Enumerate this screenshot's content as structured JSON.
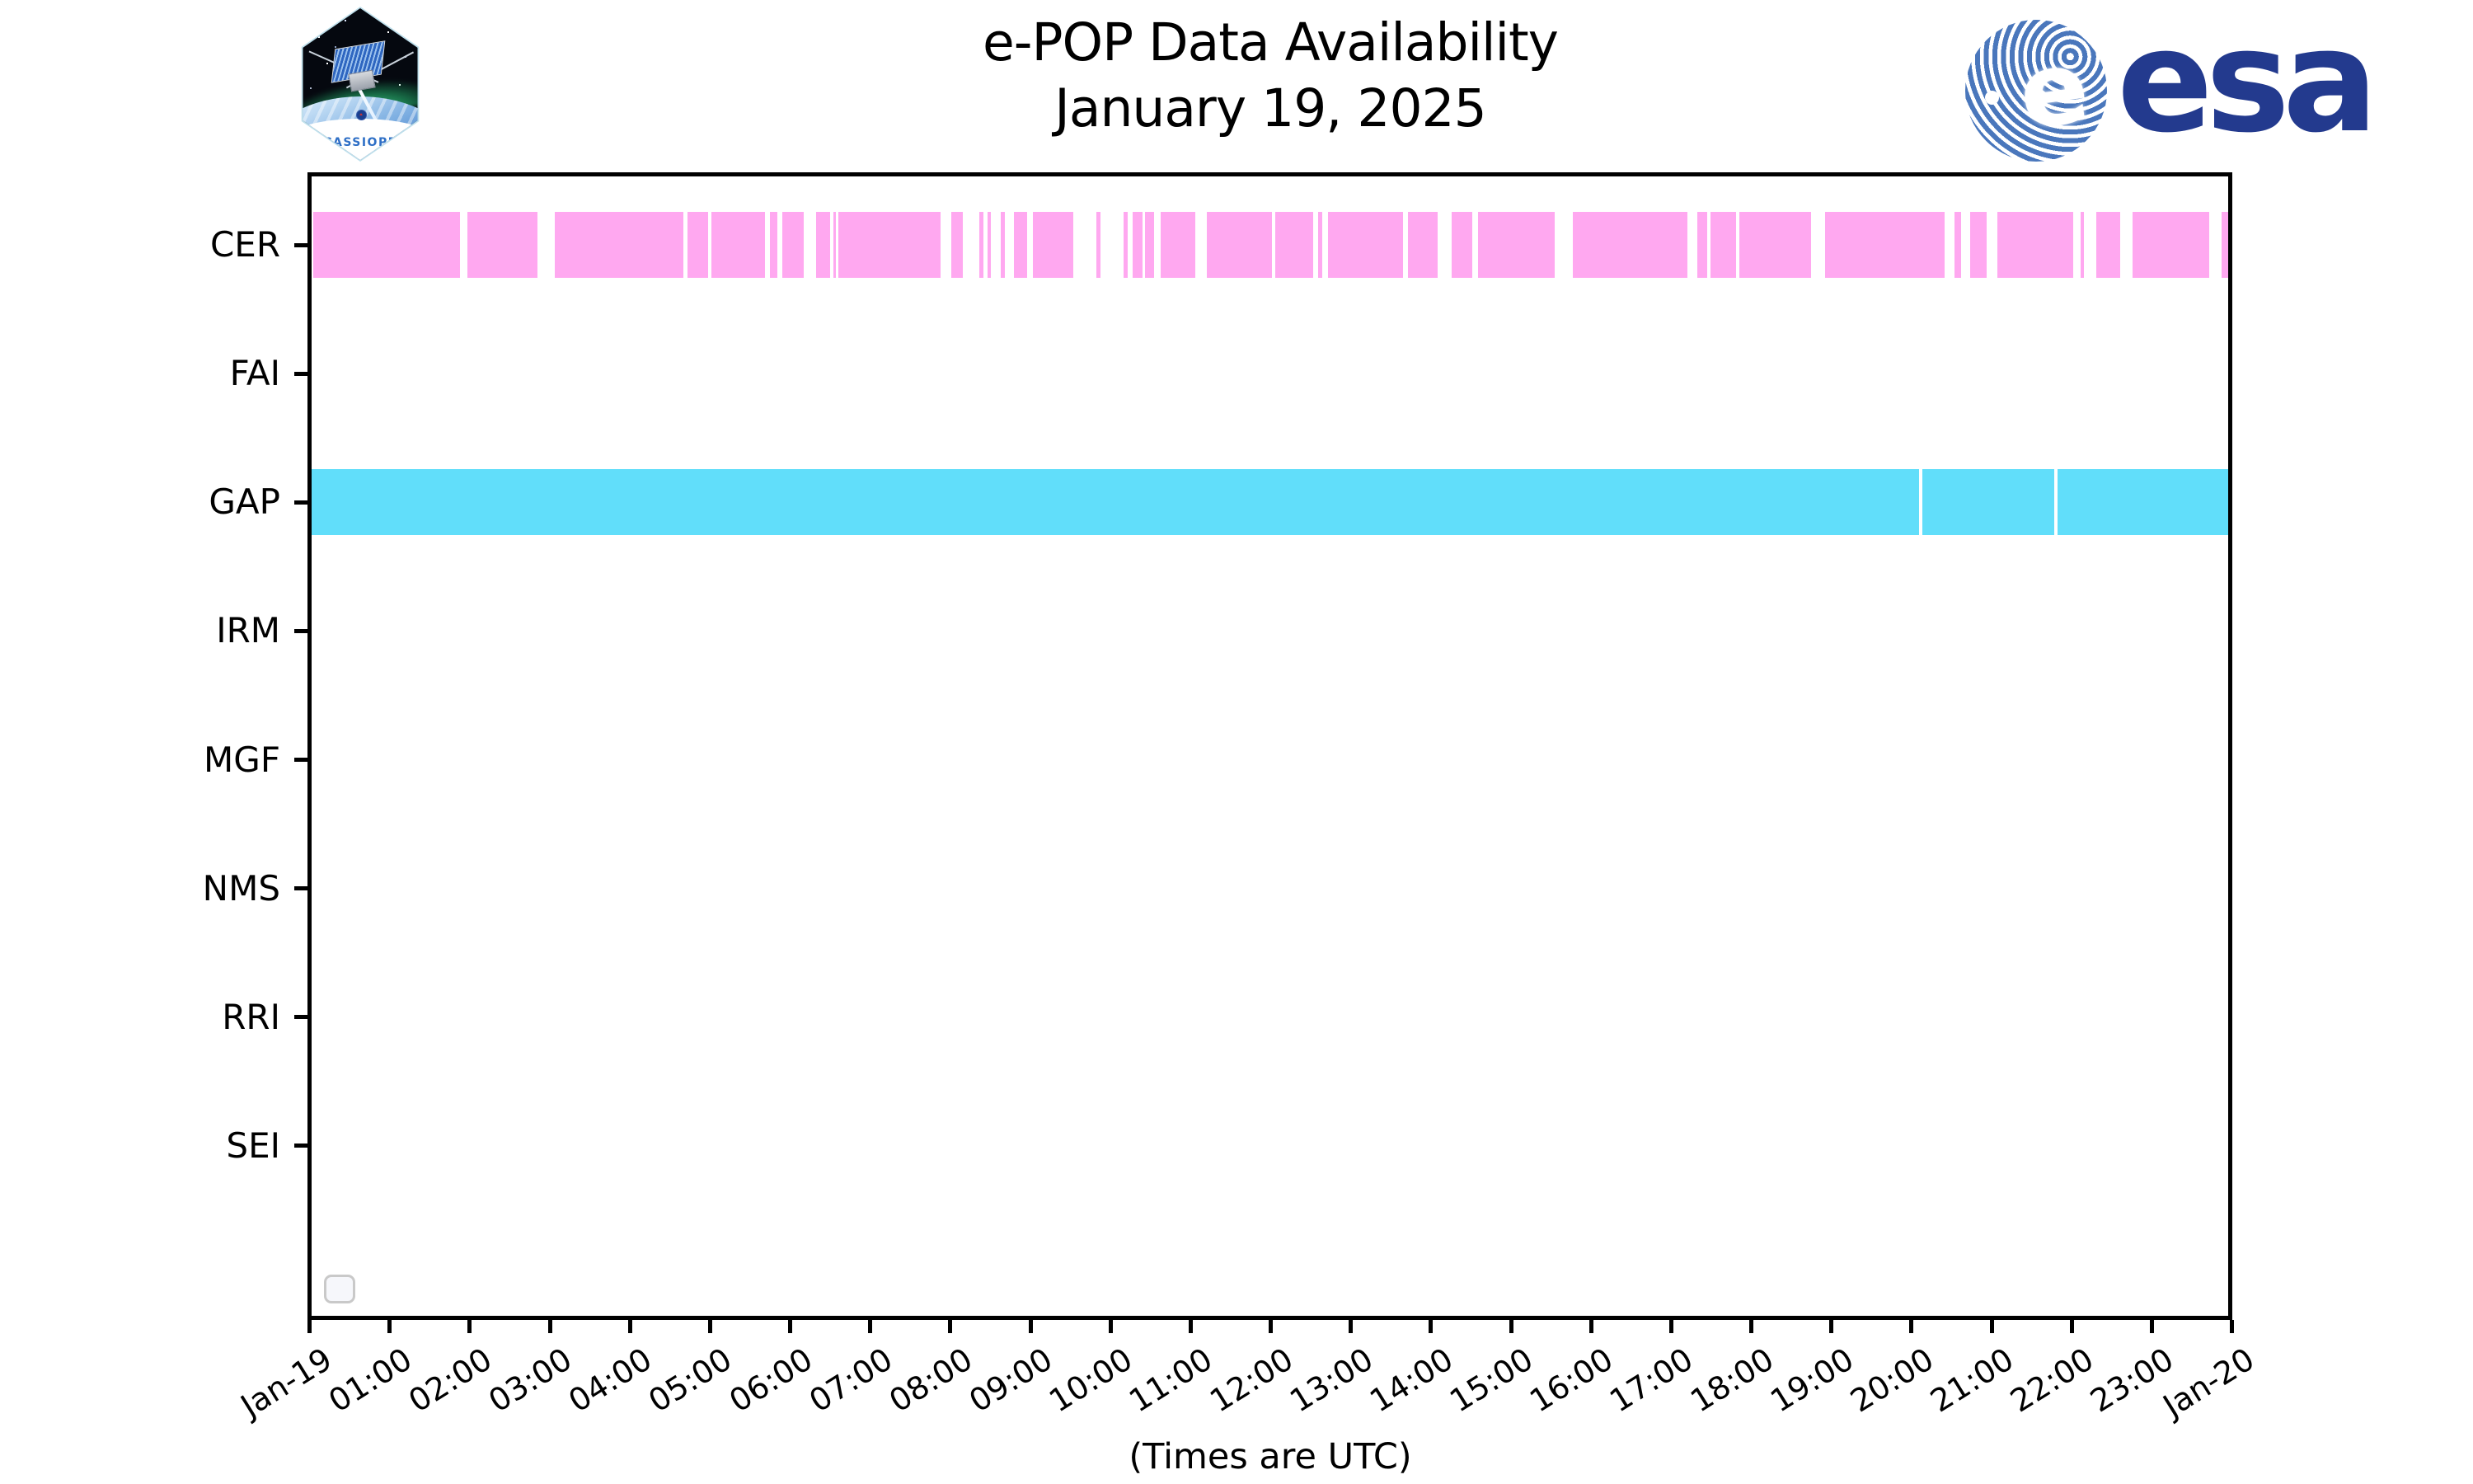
{
  "header": {
    "title": "e-POP Data Availability",
    "subtitle": "January 19, 2025",
    "cassiope_label": "CASSIOPE",
    "esa_wordmark": "esa",
    "esa_globe_letter": "e"
  },
  "footer": {
    "note": "(Times are UTC)"
  },
  "colors": {
    "cer_bar": "#FFA8F0",
    "gap_bar": "#61DEFA",
    "axis": "#000000",
    "background": "#FFFFFF",
    "esa_navy": "#233A8E",
    "esa_globe_blue": "#4A77BC",
    "patch_text_blue": "#2E6FC6",
    "legend_border": "#C9C9C9"
  },
  "chart_data": {
    "type": "bar",
    "variant": "horizontal-availability-timeline",
    "title": "e-POP Data Availability",
    "subtitle": "January 19, 2025",
    "xlabel": "(Times are UTC)",
    "ylabel": "",
    "grid": false,
    "legend": {
      "visible": true,
      "entries": []
    },
    "x_units": "hours UTC",
    "x_range_hours": [
      0,
      24
    ],
    "x_ticks": [
      "Jan-19",
      "01:00",
      "02:00",
      "03:00",
      "04:00",
      "05:00",
      "06:00",
      "07:00",
      "08:00",
      "09:00",
      "10:00",
      "11:00",
      "12:00",
      "13:00",
      "14:00",
      "15:00",
      "16:00",
      "17:00",
      "18:00",
      "19:00",
      "20:00",
      "21:00",
      "22:00",
      "23:00",
      "Jan-20"
    ],
    "rows": [
      {
        "label": "CER",
        "color": "#FFA8F0",
        "segments_hours": [
          [
            0.02,
            1.86
          ],
          [
            1.95,
            2.83
          ],
          [
            3.05,
            4.66
          ],
          [
            4.71,
            4.96
          ],
          [
            5.01,
            5.68
          ],
          [
            5.74,
            5.83
          ],
          [
            5.89,
            6.16
          ],
          [
            6.32,
            6.49
          ],
          [
            6.53,
            6.57
          ],
          [
            6.6,
            7.88
          ],
          [
            8.01,
            8.15
          ],
          [
            8.36,
            8.41
          ],
          [
            8.46,
            8.51
          ],
          [
            8.63,
            8.68
          ],
          [
            8.79,
            8.96
          ],
          [
            9.03,
            9.54
          ],
          [
            9.83,
            9.88
          ],
          [
            10.17,
            10.22
          ],
          [
            10.28,
            10.4
          ],
          [
            10.44,
            10.55
          ],
          [
            10.63,
            11.07
          ],
          [
            11.21,
            12.03
          ],
          [
            12.07,
            12.54
          ],
          [
            12.6,
            12.66
          ],
          [
            12.73,
            13.67
          ],
          [
            13.73,
            14.1
          ],
          [
            14.28,
            14.53
          ],
          [
            14.61,
            15.57
          ],
          [
            15.79,
            17.23
          ],
          [
            17.35,
            17.48
          ],
          [
            17.52,
            17.84
          ],
          [
            17.88,
            18.78
          ],
          [
            18.95,
            20.45
          ],
          [
            20.57,
            20.66
          ],
          [
            20.77,
            20.98
          ],
          [
            21.11,
            22.06
          ],
          [
            22.15,
            22.19
          ],
          [
            22.35,
            22.65
          ],
          [
            22.8,
            23.76
          ],
          [
            23.92,
            24.0
          ]
        ]
      },
      {
        "label": "FAI",
        "color": null,
        "segments_hours": []
      },
      {
        "label": "GAP",
        "color": "#61DEFA",
        "segments_hours": [
          [
            0.0,
            20.13
          ],
          [
            20.17,
            21.82
          ],
          [
            21.86,
            24.0
          ]
        ]
      },
      {
        "label": "IRM",
        "color": null,
        "segments_hours": []
      },
      {
        "label": "MGF",
        "color": null,
        "segments_hours": []
      },
      {
        "label": "NMS",
        "color": null,
        "segments_hours": []
      },
      {
        "label": "RRI",
        "color": null,
        "segments_hours": []
      },
      {
        "label": "SEI",
        "color": null,
        "segments_hours": []
      }
    ]
  }
}
